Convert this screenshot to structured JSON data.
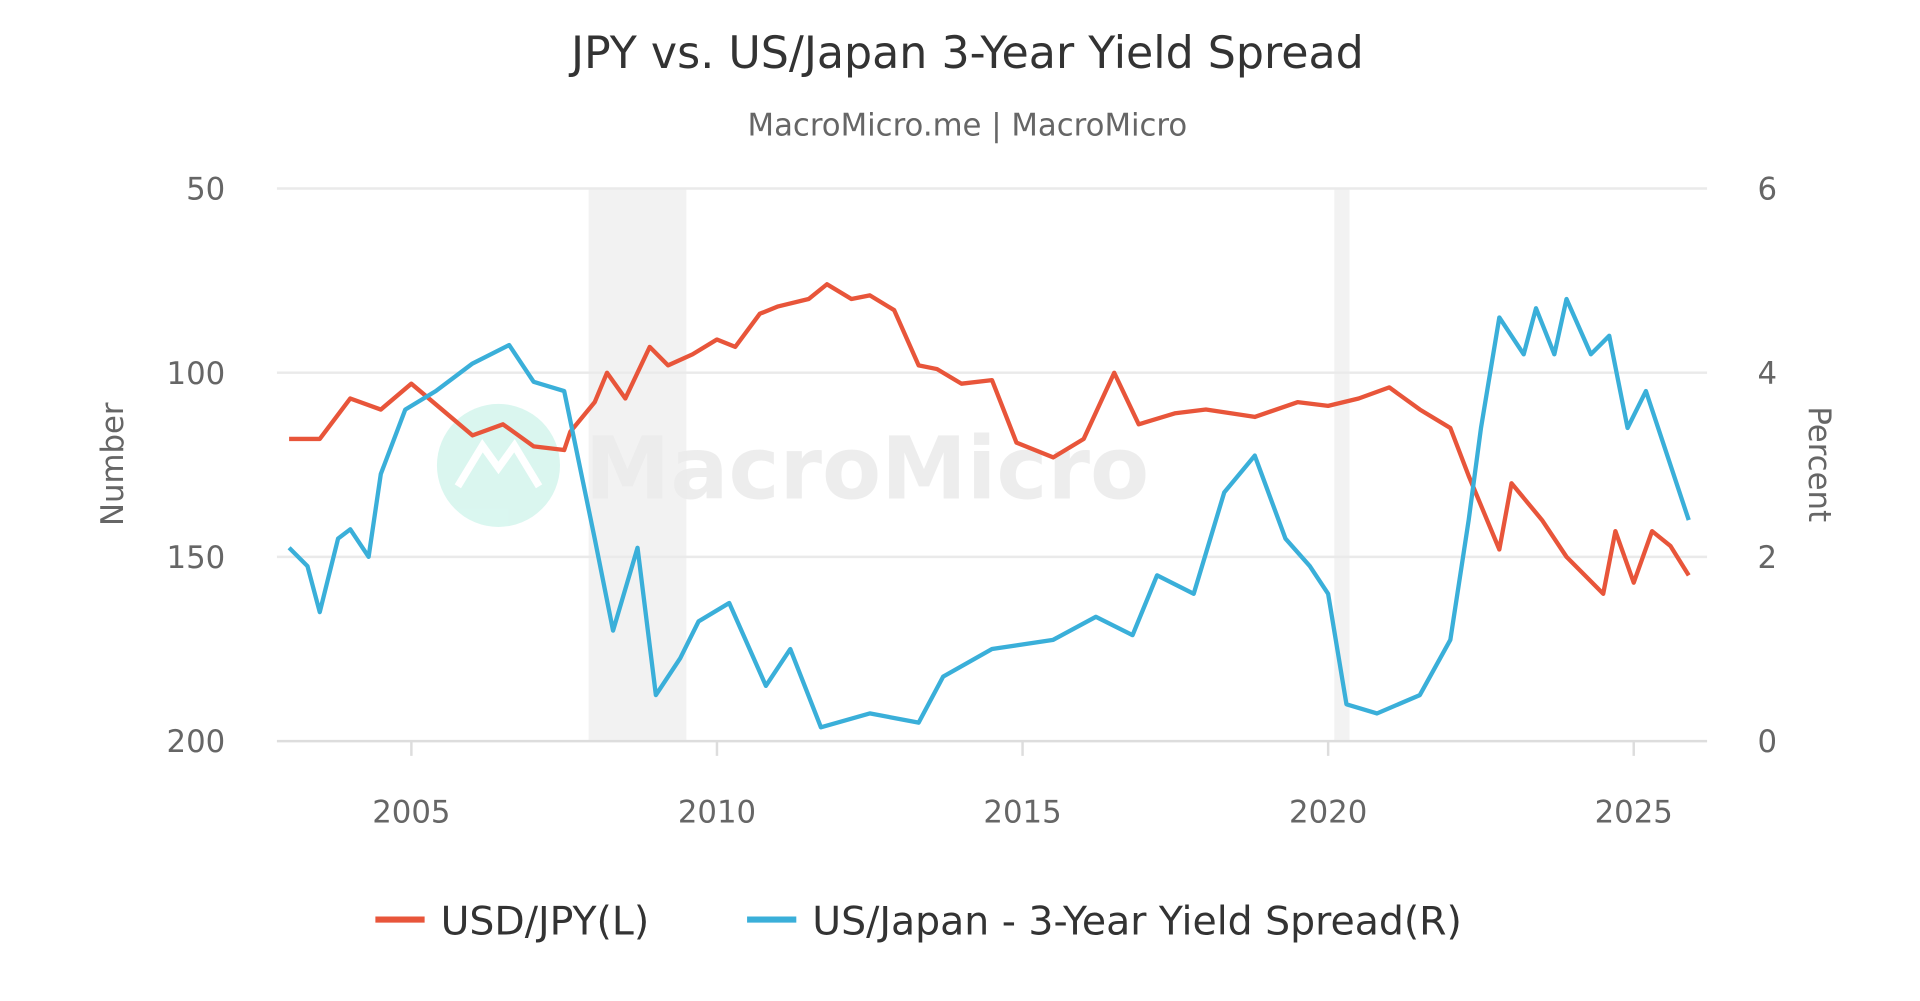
{
  "chart_data": {
    "type": "line",
    "title": "JPY vs. US/Japan 3-Year Yield Spread",
    "subtitle": "MacroMicro.me | MacroMicro",
    "watermark": "MacroMicro",
    "xlabel": "",
    "xlim": [
      2002.8,
      2026.2
    ],
    "x_ticks": [
      "2005",
      "2010",
      "2015",
      "2020",
      "2025"
    ],
    "y_left": {
      "label": "Number",
      "range": [
        50,
        200
      ],
      "inverted": true,
      "ticks": [
        "50",
        "100",
        "150",
        "200"
      ]
    },
    "y_right": {
      "label": "Percent",
      "range": [
        0,
        6
      ],
      "ticks": [
        "6",
        "4",
        "2",
        "0"
      ]
    },
    "grid": true,
    "legend_placement": "bottom",
    "shaded_periods": [
      [
        2007.9,
        2009.5
      ],
      [
        2020.1,
        2020.35
      ]
    ],
    "series": [
      {
        "name": "USD/JPY(L)",
        "axis": "left",
        "color": "#e8553a",
        "x": [
          2003.0,
          2003.5,
          2004.0,
          2004.5,
          2005.0,
          2005.5,
          2006.0,
          2006.5,
          2007.0,
          2007.5,
          2007.6,
          2008.0,
          2008.2,
          2008.5,
          2008.9,
          2009.2,
          2009.6,
          2010.0,
          2010.3,
          2010.7,
          2011.0,
          2011.5,
          2011.8,
          2012.2,
          2012.5,
          2012.9,
          2013.3,
          2013.6,
          2014.0,
          2014.5,
          2014.9,
          2015.5,
          2016.0,
          2016.5,
          2016.9,
          2017.5,
          2018.0,
          2018.8,
          2019.5,
          2020.0,
          2020.5,
          2021.0,
          2021.5,
          2022.0,
          2022.3,
          2022.8,
          2023.0,
          2023.5,
          2023.9,
          2024.5,
          2024.7,
          2025.0,
          2025.3,
          2025.6,
          2025.9
        ],
        "values": [
          118,
          118,
          107,
          110,
          103,
          110,
          117,
          114,
          120,
          121,
          116,
          108,
          100,
          107,
          93,
          98,
          95,
          91,
          93,
          84,
          82,
          80,
          76,
          80,
          79,
          83,
          98,
          99,
          103,
          102,
          119,
          123,
          118,
          100,
          114,
          111,
          110,
          112,
          108,
          109,
          107,
          104,
          110,
          115,
          128,
          148,
          130,
          140,
          150,
          160,
          143,
          157,
          143,
          147,
          155
        ]
      },
      {
        "name": "US/Japan - 3-Year Yield Spread(R)",
        "axis": "right",
        "color": "#3aafd9",
        "x": [
          2003.0,
          2003.3,
          2003.5,
          2003.8,
          2004.0,
          2004.3,
          2004.5,
          2004.9,
          2005.4,
          2006.0,
          2006.6,
          2007.0,
          2007.5,
          2008.0,
          2008.3,
          2008.7,
          2009.0,
          2009.4,
          2009.7,
          2010.2,
          2010.8,
          2011.2,
          2011.7,
          2012.5,
          2013.3,
          2013.7,
          2014.5,
          2015.5,
          2016.2,
          2016.8,
          2017.2,
          2017.8,
          2018.3,
          2018.8,
          2019.3,
          2019.7,
          2020.0,
          2020.3,
          2020.8,
          2021.5,
          2022.0,
          2022.3,
          2022.5,
          2022.8,
          2023.2,
          2023.4,
          2023.7,
          2023.9,
          2024.3,
          2024.6,
          2024.9,
          2025.2,
          2025.5,
          2025.9
        ],
        "values": [
          2.1,
          1.9,
          1.4,
          2.2,
          2.3,
          2.0,
          2.9,
          3.6,
          3.8,
          4.1,
          4.3,
          3.9,
          3.8,
          2.2,
          1.2,
          2.1,
          0.5,
          0.9,
          1.3,
          1.5,
          0.6,
          1.0,
          0.15,
          0.3,
          0.2,
          0.7,
          1.0,
          1.1,
          1.35,
          1.15,
          1.8,
          1.6,
          2.7,
          3.1,
          2.2,
          1.9,
          1.6,
          0.4,
          0.3,
          0.5,
          1.1,
          2.4,
          3.4,
          4.6,
          4.2,
          4.7,
          4.2,
          4.8,
          4.2,
          4.4,
          3.4,
          3.8,
          3.2,
          2.4
        ]
      }
    ]
  }
}
